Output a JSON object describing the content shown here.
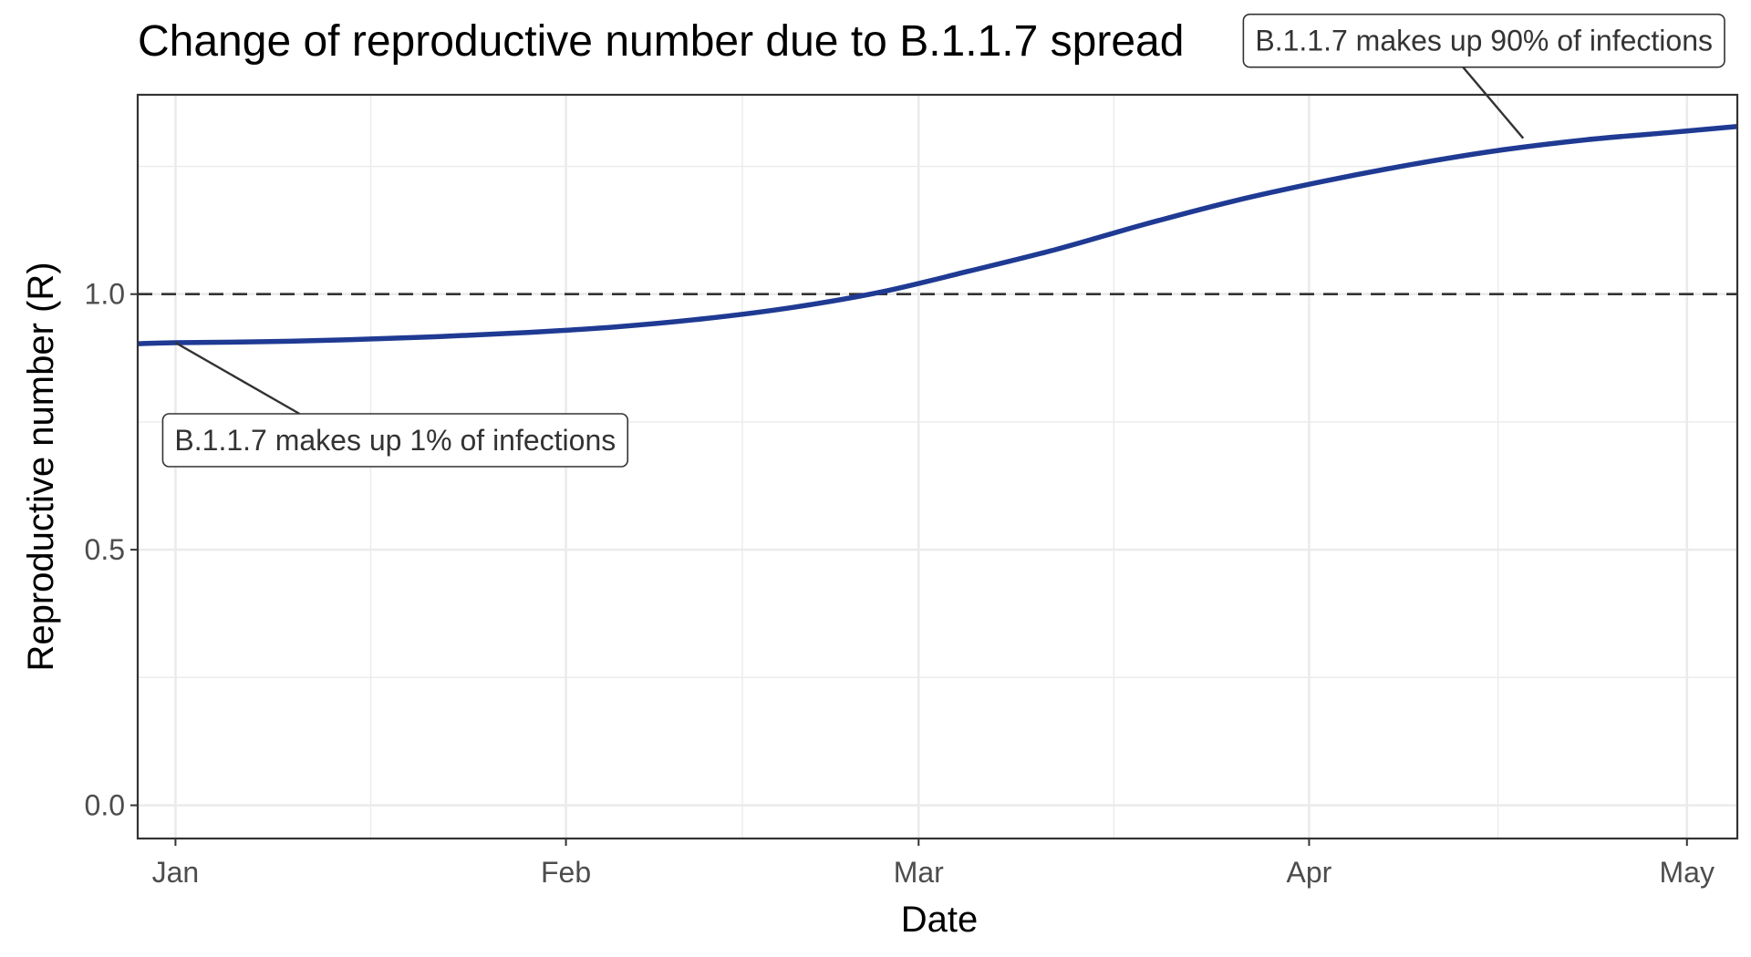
{
  "chart_data": {
    "type": "line",
    "title": "Change of reproductive number due to B.1.1.7 spread",
    "xlabel": "Date",
    "ylabel": "Reproductive number (R)",
    "x_type": "date",
    "xlim": [
      "2020-12-29",
      "2021-05-05"
    ],
    "ylim": [
      -0.065,
      1.39
    ],
    "x_ticks": [
      {
        "label": "Jan",
        "date": "2021-01-01"
      },
      {
        "label": "Feb",
        "date": "2021-02-01"
      },
      {
        "label": "Mar",
        "date": "2021-03-01"
      },
      {
        "label": "Apr",
        "date": "2021-04-01"
      },
      {
        "label": "May",
        "date": "2021-05-01"
      }
    ],
    "y_ticks": [
      {
        "label": "0.0",
        "value": 0.0
      },
      {
        "label": "0.5",
        "value": 0.5
      },
      {
        "label": "1.0",
        "value": 1.0
      }
    ],
    "grid": true,
    "reference_line": {
      "y": 1.0,
      "style": "dashed",
      "color": "#333333"
    },
    "series": [
      {
        "color": "#1f3a93",
        "points": [
          [
            "2020-12-29",
            0.903
          ],
          [
            "2021-01-01",
            0.905
          ],
          [
            "2021-01-08",
            0.907
          ],
          [
            "2021-01-15",
            0.911
          ],
          [
            "2021-01-22",
            0.917
          ],
          [
            "2021-01-29",
            0.925
          ],
          [
            "2021-02-05",
            0.936
          ],
          [
            "2021-02-12",
            0.952
          ],
          [
            "2021-02-19",
            0.974
          ],
          [
            "2021-02-26",
            1.004
          ],
          [
            "2021-03-05",
            1.045
          ],
          [
            "2021-03-12",
            1.088
          ],
          [
            "2021-03-19",
            1.137
          ],
          [
            "2021-03-26",
            1.182
          ],
          [
            "2021-04-02",
            1.22
          ],
          [
            "2021-04-09",
            1.253
          ],
          [
            "2021-04-16",
            1.281
          ],
          [
            "2021-04-23",
            1.302
          ],
          [
            "2021-04-30",
            1.317
          ],
          [
            "2021-05-05",
            1.328
          ]
        ]
      }
    ],
    "annotations": [
      {
        "text": "B.1.1.7 makes up 1% of infections",
        "date": "2021-01-01",
        "value": 0.905
      },
      {
        "text": "B.1.1.7 makes up 90% of infections",
        "date": "2021-04-18",
        "value": 1.305
      }
    ]
  }
}
